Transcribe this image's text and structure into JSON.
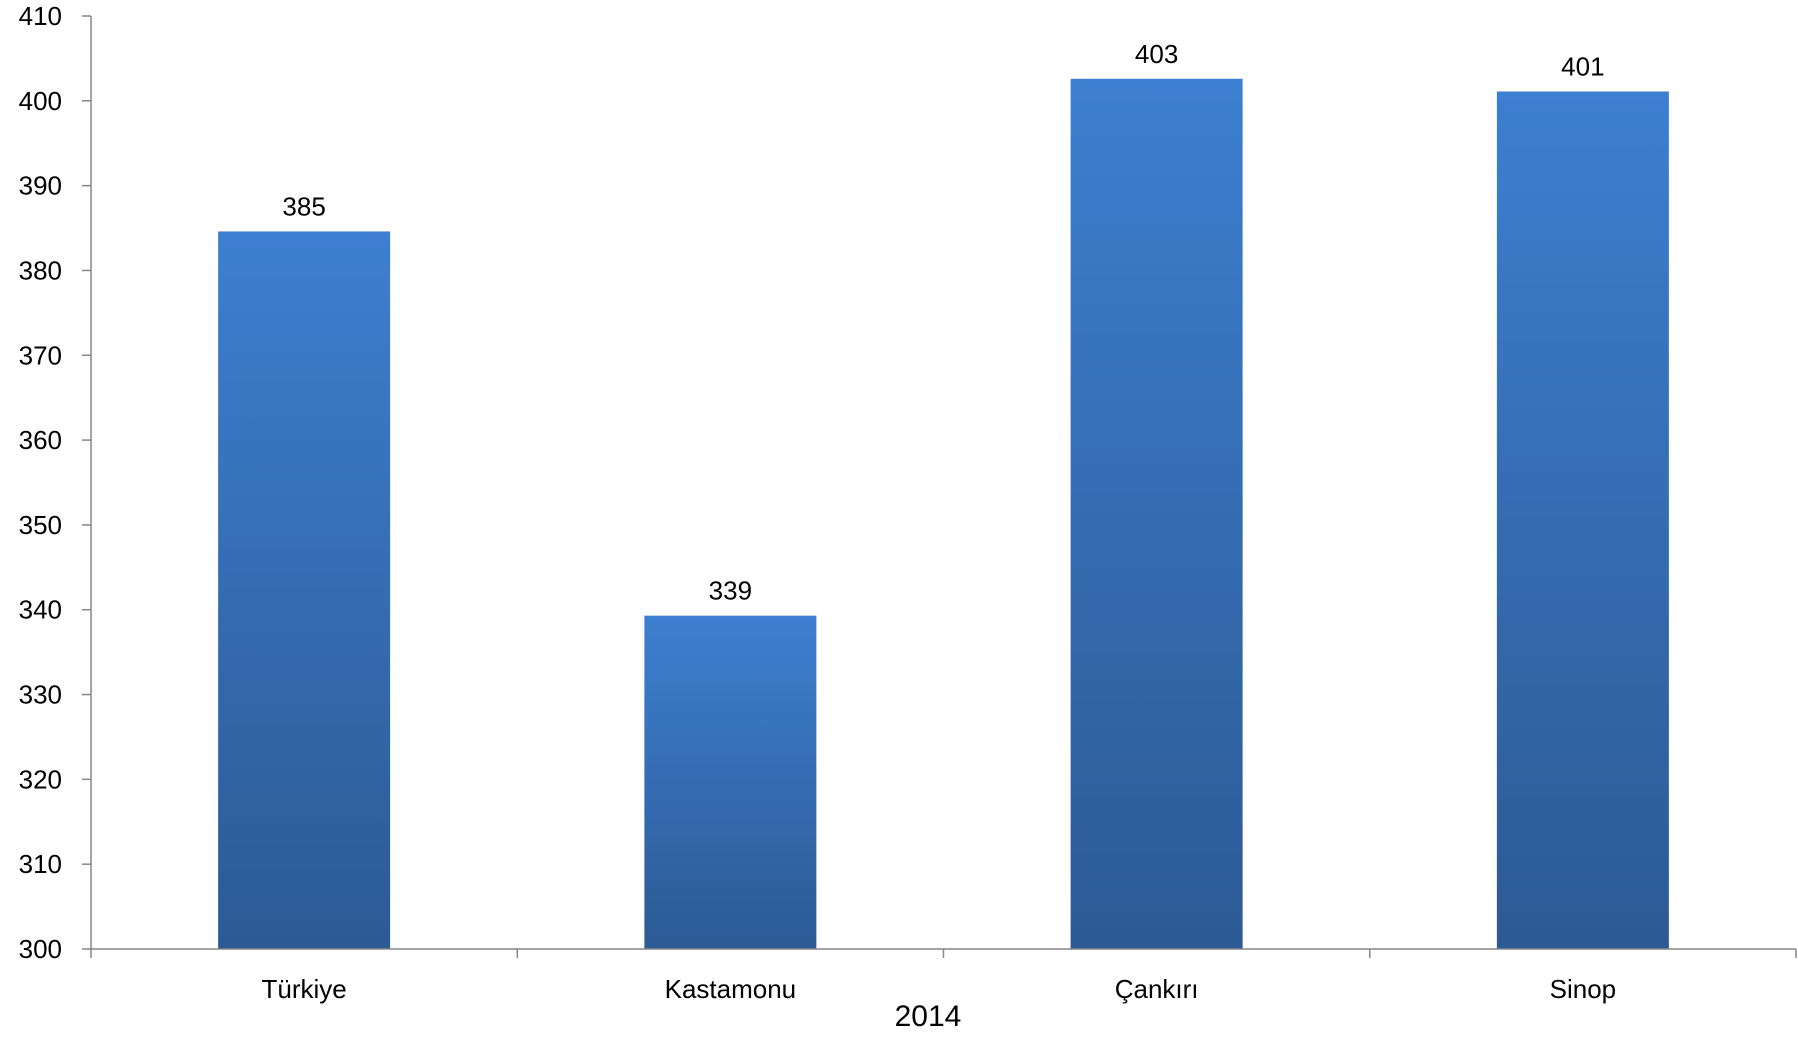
{
  "chart_data": {
    "type": "bar",
    "categories": [
      "Türkiye",
      "Kastamonu",
      "Çankırı",
      "Sinop"
    ],
    "values": [
      384.6,
      339.3,
      402.6,
      401.1
    ],
    "data_labels": [
      "385",
      "339",
      "403",
      "401"
    ],
    "title": "",
    "xlabel": "2014",
    "ylabel": "",
    "ylim": [
      300,
      410
    ],
    "yticks": [
      "300",
      "310",
      "320",
      "330",
      "340",
      "350",
      "360",
      "370",
      "380",
      "390",
      "400",
      "410"
    ],
    "grid": false,
    "legend": "none",
    "bar_color_top": "#3d7fd0",
    "bar_color_bottom": "#2c5a94",
    "axis_color": "#868686"
  }
}
